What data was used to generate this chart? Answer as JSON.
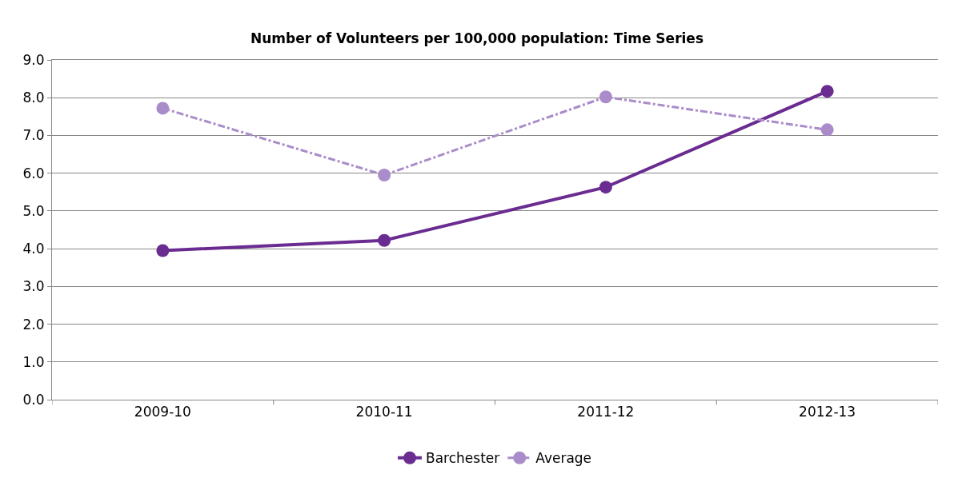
{
  "chart_data": {
    "type": "line",
    "title": "Number of Volunteers per 100,000 population: Time Series",
    "categories": [
      "2009-10",
      "2010-11",
      "2011-12",
      "2012-13"
    ],
    "series": [
      {
        "name": "Barchester",
        "color": "#6b2c91",
        "values": [
          3.95,
          4.22,
          5.63,
          8.17
        ],
        "marker": "circle",
        "line_style": "solid"
      },
      {
        "name": "Average",
        "color": "#a98cc9",
        "values": [
          7.72,
          5.95,
          8.02,
          7.15
        ],
        "marker": "circle",
        "line_style": "dashed"
      }
    ],
    "ylim": [
      0,
      9
    ],
    "yticks": [
      {
        "value": 0,
        "label": "0.0"
      },
      {
        "value": 1,
        "label": "1.0"
      },
      {
        "value": 2,
        "label": "2.0"
      },
      {
        "value": 3,
        "label": "3.0"
      },
      {
        "value": 4,
        "label": "4.0"
      },
      {
        "value": 5,
        "label": "5.0"
      },
      {
        "value": 6,
        "label": "6.0"
      },
      {
        "value": 7,
        "label": "7.0"
      },
      {
        "value": 8,
        "label": "8.0"
      },
      {
        "value": 9,
        "label": "9.0"
      }
    ],
    "grid": "y",
    "legend": "bottom"
  }
}
